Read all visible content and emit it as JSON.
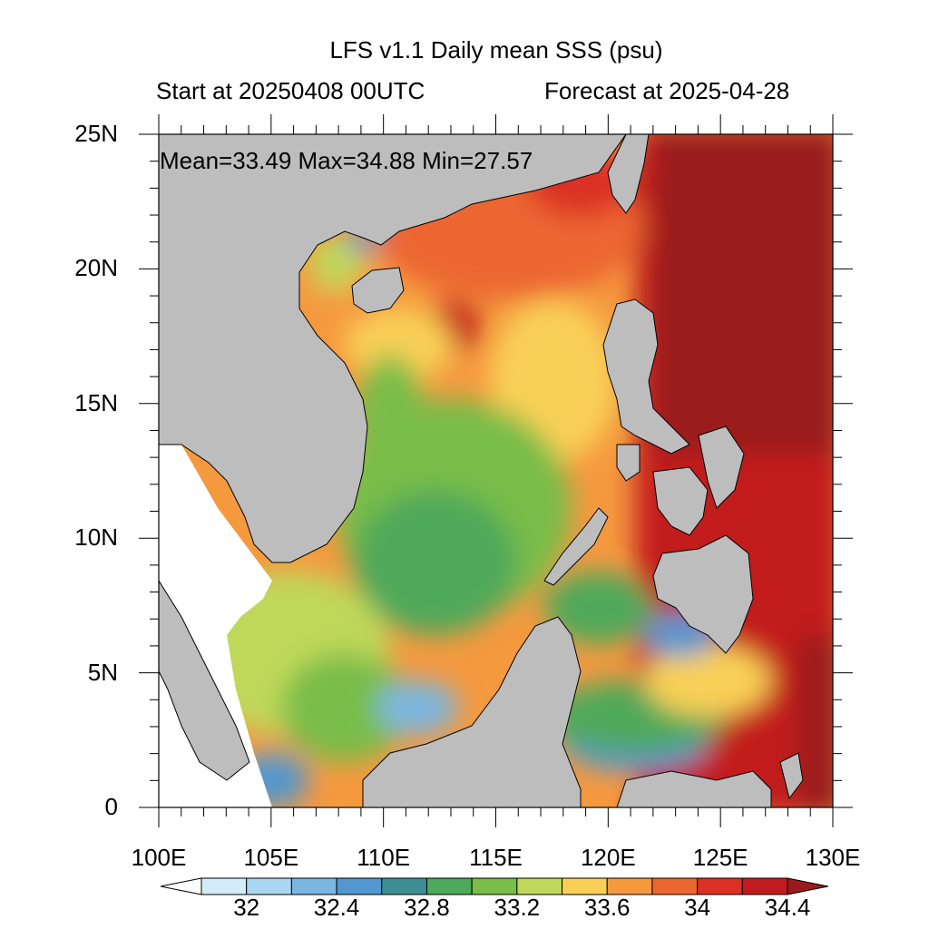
{
  "title": "LFS v1.1 Daily mean SSS (psu)",
  "subtitle_left": "Start at 20250408 00UTC",
  "subtitle_right": "Forecast at 2025-04-28",
  "stats": "Mean=33.49  Max=34.88  Min=27.57",
  "map": {
    "lon_range": [
      100,
      130
    ],
    "lat_range": [
      0,
      25
    ],
    "x_ticks": [
      "100E",
      "105E",
      "110E",
      "115E",
      "120E",
      "125E",
      "130E"
    ],
    "y_ticks": [
      "0",
      "5N",
      "10N",
      "15N",
      "20N",
      "25N"
    ],
    "land_color": "#bdbdbd",
    "field": "sea surface salinity"
  },
  "colorbar": {
    "labels": [
      "32",
      "32.4",
      "32.8",
      "33.2",
      "33.6",
      "34",
      "34.4"
    ],
    "levels": [
      31.8,
      32.0,
      32.2,
      32.4,
      32.6,
      32.8,
      33.0,
      33.2,
      33.4,
      33.6,
      33.8,
      34.0,
      34.2,
      34.4,
      34.6
    ],
    "colors": [
      "#ffffff",
      "#d3ecf8",
      "#a9d7f2",
      "#7ab6e0",
      "#5297cf",
      "#3e8f93",
      "#4fa95a",
      "#79bd4a",
      "#bfd85a",
      "#f9d057",
      "#f5993f",
      "#ec6630",
      "#dc3025",
      "#c21b1f",
      "#9a1a1b"
    ]
  }
}
